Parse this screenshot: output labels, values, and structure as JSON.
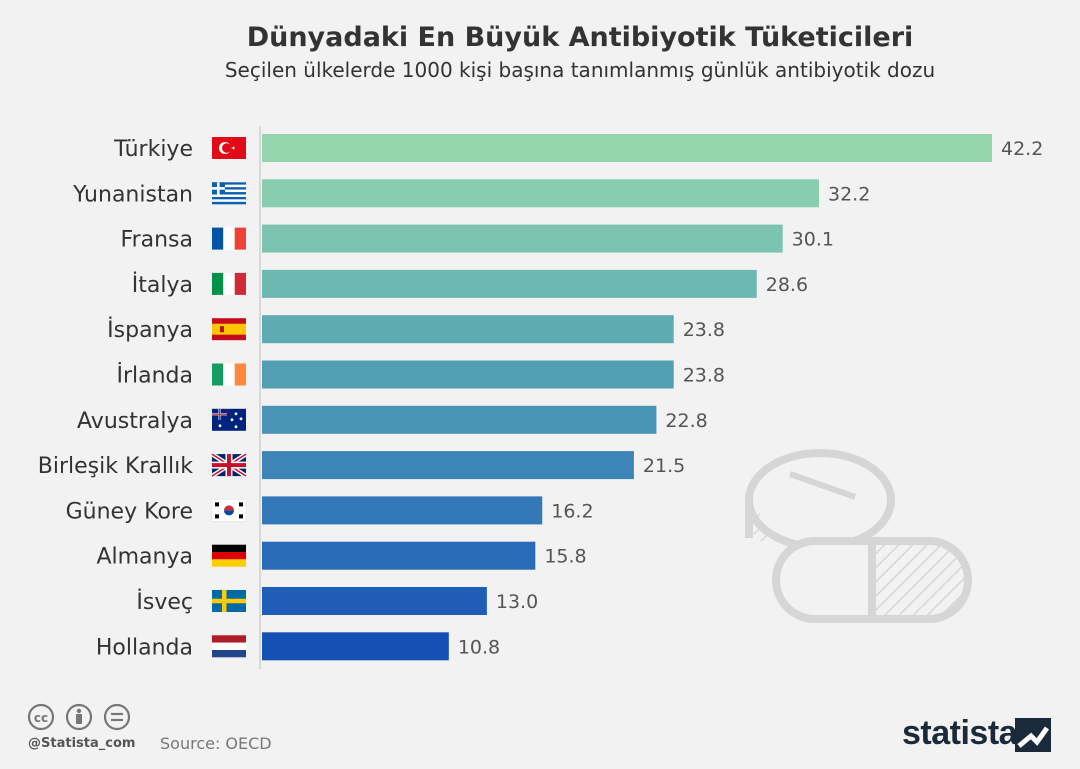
{
  "header": {
    "title": "Dünyadaki En Büyük Antibiyotik Tüketicileri",
    "subtitle": "Seçilen ülkelerde 1000 kişi başına tanımlanmış günlük antibiyotik dozu"
  },
  "chart_data": {
    "type": "bar",
    "orientation": "horizontal",
    "title": "Dünyadaki En Büyük Antibiyotik Tüketicileri",
    "subtitle": "Seçilen ülkelerde 1000 kişi başına tanımlanmış günlük antibiyotik dozu",
    "xlabel": "",
    "ylabel": "",
    "categories": [
      "Türkiye",
      "Yunanistan",
      "Fransa",
      "İtalya",
      "İspanya",
      "İrlanda",
      "Avustralya",
      "Birleşik Krallık",
      "Güney Kore",
      "Almanya",
      "İsveç",
      "Hollanda"
    ],
    "values": [
      42.2,
      32.2,
      30.1,
      28.6,
      23.8,
      23.8,
      22.8,
      21.5,
      16.2,
      15.8,
      13.0,
      10.8
    ],
    "value_labels": [
      "42.2",
      "32.2",
      "30.1",
      "28.6",
      "23.8",
      "23.8",
      "22.8",
      "21.5",
      "16.2",
      "15.8",
      "13.0",
      "10.8"
    ],
    "flags": [
      "flag-turkey-icon",
      "flag-greece-icon",
      "flag-france-icon",
      "flag-italy-icon",
      "flag-spain-icon",
      "flag-ireland-icon",
      "flag-australia-icon",
      "flag-uk-icon",
      "flag-south-korea-icon",
      "flag-germany-icon",
      "flag-sweden-icon",
      "flag-netherlands-icon"
    ],
    "bar_colors": [
      "#95d5ae",
      "#89cdaf",
      "#7dc4b0",
      "#6db8b1",
      "#5eabb3",
      "#529fb4",
      "#4893b6",
      "#3e85b7",
      "#3378b8",
      "#2a6bb8",
      "#205db8",
      "#1550b5"
    ],
    "xlim": [
      0,
      42.2
    ],
    "grid": false,
    "legend": "none"
  },
  "footer": {
    "handle": "@Statista_com",
    "source": "Source: OECD",
    "brand": "statista",
    "license_icons": [
      "cc-icon",
      "by-icon",
      "nd-icon"
    ]
  },
  "decoration": {
    "icon": "pills-icon"
  }
}
